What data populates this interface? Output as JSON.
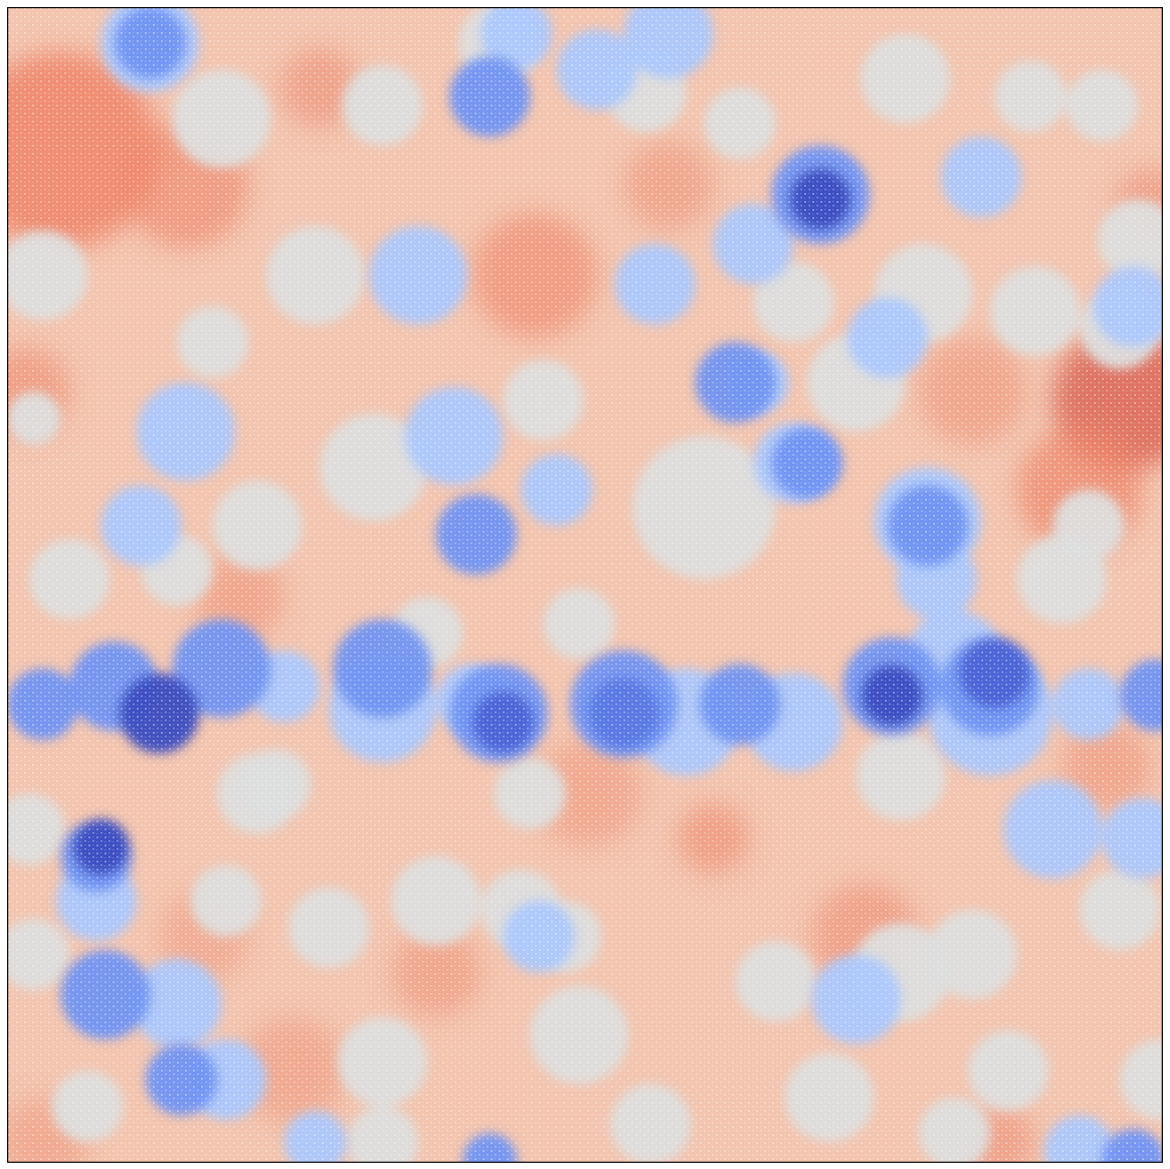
{
  "figure": {
    "kind": "particle-field",
    "colormap": "coolwarm",
    "colors": {
      "deep_blue": "#3a4cc0",
      "mid_blue": "#6f92f3",
      "light_blue": "#aac7fd",
      "pale": "#dcdddd",
      "light_red": "#f2cbb7",
      "mid_red": "#ee8468",
      "deep_red": "#d65244",
      "frame": "#000000"
    },
    "axes_visible": false
  }
}
